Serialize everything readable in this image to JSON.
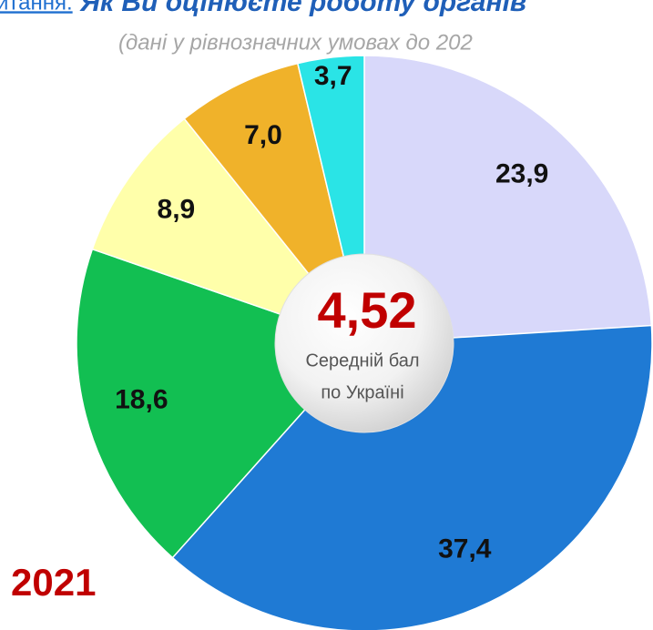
{
  "chart_data": {
    "type": "donut",
    "question_prefix": "итання:",
    "title": "Як Ви оцінюєте роботу органів",
    "subtitle": "(дані у рівнозначних умовах до 202",
    "values": [
      23.9,
      37.4,
      18.6,
      8.9,
      7.0,
      3.7
    ],
    "value_labels": [
      "23,9",
      "37,4",
      "18,6",
      "8,9",
      "7,0",
      "3,7"
    ],
    "colors": [
      "#d8d8fa",
      "#1f7ad4",
      "#12bf52",
      "#ffffaa",
      "#f0b22a",
      "#2ae4e6"
    ],
    "center_value": "4,52",
    "center_label_1": "Середній бал",
    "center_label_2": "по Україні",
    "year": "2021"
  }
}
